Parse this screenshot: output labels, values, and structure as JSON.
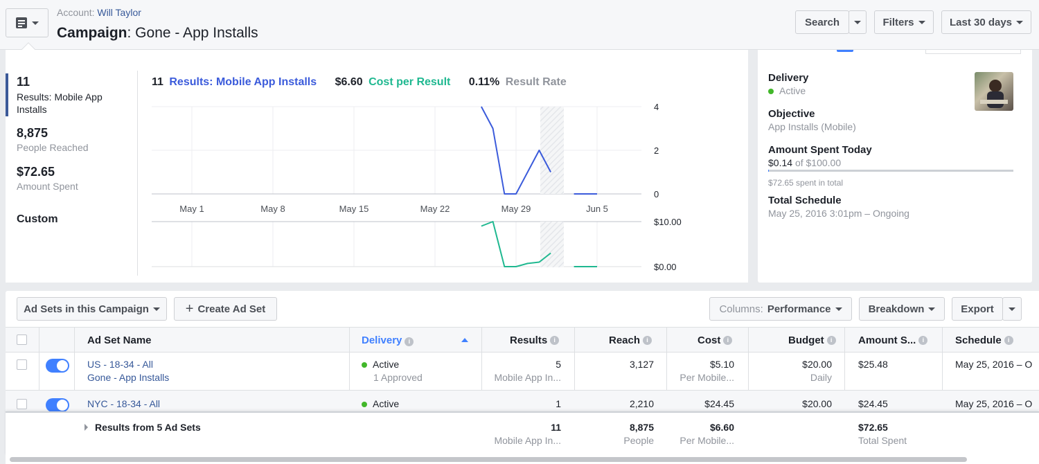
{
  "header": {
    "account_label": "Account:",
    "account_name": "Will Taylor",
    "campaign_label": "Campaign",
    "campaign_name": ": Gone - App Installs",
    "search_label": "Search",
    "filters_label": "Filters",
    "date_range_label": "Last 30 days"
  },
  "summary": {
    "results_value": "11",
    "results_label": "Results: Mobile App Installs",
    "reach_value": "8,875",
    "reach_label": "People Reached",
    "spent_value": "$72.65",
    "spent_label": "Amount Spent",
    "custom_label": "Custom"
  },
  "chart_header": {
    "results_value": "11",
    "results_label": "Results: Mobile App Installs",
    "cpr_value": "$6.60",
    "cpr_label": "Cost per Result",
    "rate_value": "0.11%",
    "rate_label": "Result Rate"
  },
  "chart_data": [
    {
      "type": "line",
      "series": [
        {
          "name": "Results: Mobile App Installs",
          "color": "#3b5bdb"
        }
      ],
      "x_ticks": [
        "May 1",
        "May 8",
        "May 15",
        "May 22",
        "May 29",
        "Jun 5"
      ],
      "x_dates": [
        "May 26",
        "May 27",
        "May 28",
        "May 29",
        "May 30",
        "May 31",
        "Jun 1",
        "Jun 2",
        "Jun 3",
        "Jun 4",
        "Jun 5"
      ],
      "segments": [
        [
          [
            "May 26",
            4
          ],
          [
            "May 27",
            3
          ],
          [
            "May 28",
            0
          ],
          [
            "May 29",
            0
          ],
          [
            "May 30",
            1
          ],
          [
            "May 31",
            2
          ],
          [
            "Jun 1",
            1
          ]
        ],
        [
          [
            "Jun 3",
            0
          ],
          [
            "Jun 4",
            0
          ],
          [
            "Jun 5",
            0
          ]
        ]
      ],
      "y_ticks": [
        "4",
        "2",
        "0"
      ],
      "ylim": [
        0,
        4
      ]
    },
    {
      "type": "line",
      "series": [
        {
          "name": "Cost per Result",
          "color": "#1fb890"
        }
      ],
      "segments": [
        [
          [
            "May 26",
            9.0
          ],
          [
            "May 27",
            10.0
          ],
          [
            "May 28",
            0
          ],
          [
            "May 29",
            0
          ],
          [
            "May 30",
            0.7
          ],
          [
            "May 31",
            1.0
          ],
          [
            "Jun 1",
            3.0
          ]
        ],
        [
          [
            "Jun 3",
            0
          ],
          [
            "Jun 4",
            0
          ],
          [
            "Jun 5",
            0
          ]
        ]
      ],
      "y_ticks": [
        "$10.00",
        "$0.00"
      ],
      "ylim": [
        0,
        10
      ]
    }
  ],
  "details": {
    "delivery_title": "Delivery",
    "delivery_status": "Active",
    "objective_title": "Objective",
    "objective_value": "App Installs (Mobile)",
    "spent_today_title": "Amount Spent Today",
    "spent_today_value": "$0.14",
    "spent_today_of": "of $100.00",
    "spent_today_fraction": 0.0014,
    "spent_total": "$72.65 spent in total",
    "schedule_title": "Total Schedule",
    "schedule_value": "May 25, 2016 3:01pm – Ongoing"
  },
  "toolbar": {
    "adsets_label": "Ad Sets in this Campaign",
    "create_label": "Create Ad Set",
    "columns_prefix": "Columns:",
    "columns_value": "Performance",
    "breakdown_label": "Breakdown",
    "export_label": "Export"
  },
  "table": {
    "headers": {
      "name": "Ad Set Name",
      "delivery": "Delivery",
      "results": "Results",
      "reach": "Reach",
      "cost": "Cost",
      "budget": "Budget",
      "amount": "Amount S...",
      "schedule": "Schedule"
    },
    "rows": [
      {
        "name": "US - 18-34 - All",
        "campaign": "Gone - App Installs",
        "delivery": "Active",
        "delivery_sub": "1 Approved",
        "results": "5",
        "results_sub": "Mobile App In...",
        "reach": "3,127",
        "cost": "$5.10",
        "cost_sub": "Per Mobile...",
        "budget": "$20.00",
        "budget_sub": "Daily",
        "amount": "$25.48",
        "schedule": "May 25, 2016 – O"
      },
      {
        "name": "NYC - 18-34 - All",
        "delivery": "Active",
        "results": "1",
        "reach": "2,210",
        "cost": "$24.45",
        "budget": "$20.00",
        "amount": "$24.45",
        "schedule": "May 25, 2016 – O"
      }
    ],
    "totals": {
      "label": "Results from 5 Ad Sets",
      "results": "11",
      "results_sub": "Mobile App In...",
      "reach": "8,875",
      "reach_sub": "People",
      "cost": "$6.60",
      "cost_sub": "Per Mobile...",
      "amount": "$72.65",
      "amount_sub": "Total Spent"
    }
  },
  "colors": {
    "results_line": "#3b5bdb",
    "cost_line": "#1fb890",
    "toggle_on": "#4080ff",
    "active_dot": "#42b72a"
  }
}
